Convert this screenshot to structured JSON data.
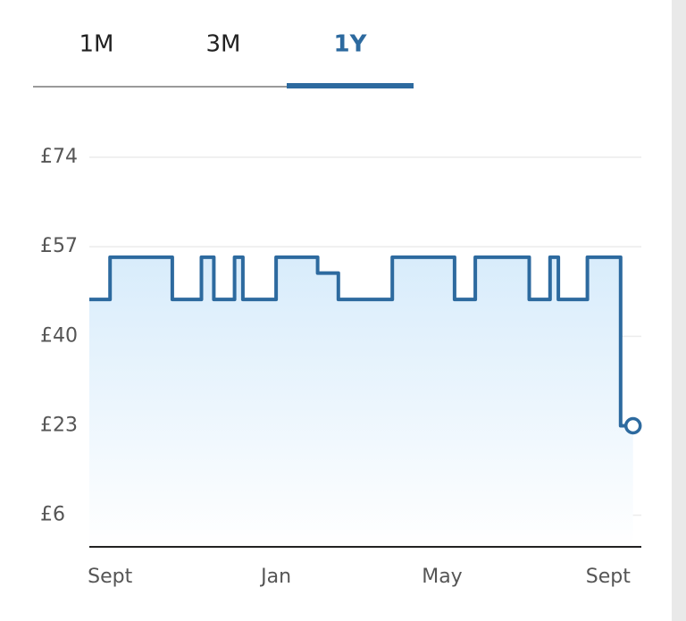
{
  "tabs": {
    "items": [
      "1M",
      "3M",
      "1Y"
    ],
    "selected": 2
  },
  "chart_data": {
    "type": "line",
    "x": [
      -0.5,
      0,
      0,
      1.5,
      1.5,
      2.2,
      2.2,
      2.5,
      2.5,
      3,
      3,
      3.2,
      3.2,
      4,
      4,
      5,
      5,
      5.5,
      5.5,
      6.8,
      6.8,
      8.3,
      8.3,
      8.8,
      8.8,
      10.1,
      10.1,
      10.6,
      10.6,
      10.8,
      10.8,
      11.5,
      11.5,
      12.3,
      12.3,
      12.6
    ],
    "values": [
      47,
      47,
      55,
      55,
      47,
      47,
      55,
      55,
      47,
      47,
      55,
      55,
      47,
      47,
      55,
      55,
      52,
      52,
      47,
      47,
      55,
      55,
      47,
      47,
      55,
      55,
      47,
      47,
      55,
      55,
      47,
      47,
      55,
      55,
      23,
      23
    ],
    "color": "#2d6a9f",
    "xlim": [
      -0.5,
      12.8
    ],
    "xticks": [
      {
        "value": 0,
        "label": "Sept"
      },
      {
        "value": 4,
        "label": "Jan"
      },
      {
        "value": 8,
        "label": "May"
      },
      {
        "value": 12,
        "label": "Sept"
      }
    ],
    "ylim": [
      0,
      74
    ],
    "yticks": [
      {
        "value": 6,
        "label": "£6"
      },
      {
        "value": 23,
        "label": "£23"
      },
      {
        "value": 40,
        "label": "£40"
      },
      {
        "value": 57,
        "label": "£57"
      },
      {
        "value": 74,
        "label": "£74"
      }
    ],
    "grid": true
  }
}
